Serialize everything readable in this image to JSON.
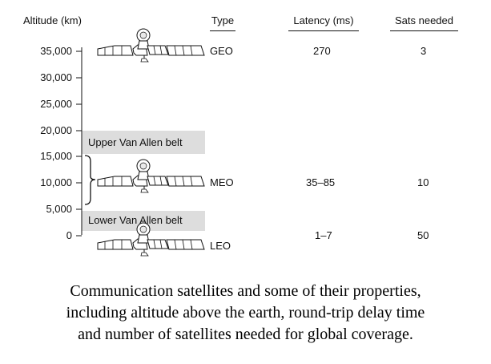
{
  "diagram": {
    "axis_title": "Altitude (km)",
    "ticks": [
      "35,000",
      "30,000",
      "25,000",
      "20,000",
      "15,000",
      "10,000",
      "5,000",
      "0"
    ],
    "headers": {
      "type": "Type",
      "latency": "Latency (ms)",
      "sats": "Sats needed"
    },
    "rows": [
      {
        "type": "GEO",
        "latency": "270",
        "sats": "3"
      },
      {
        "type": "MEO",
        "latency": "35–85",
        "sats": "10"
      },
      {
        "type": "LEO",
        "latency": "1–7",
        "sats": "50"
      }
    ],
    "belts": {
      "upper": "Upper Van Allen belt",
      "lower": "Lower Van Allen belt"
    },
    "icons": [
      "satellite-icon",
      "satellite-icon",
      "satellite-icon"
    ]
  },
  "caption": {
    "line1": "Communication satellites and some of their properties,",
    "line2": "including altitude above the earth, round-trip delay time",
    "line3": "and number of satellites needed for global coverage."
  }
}
